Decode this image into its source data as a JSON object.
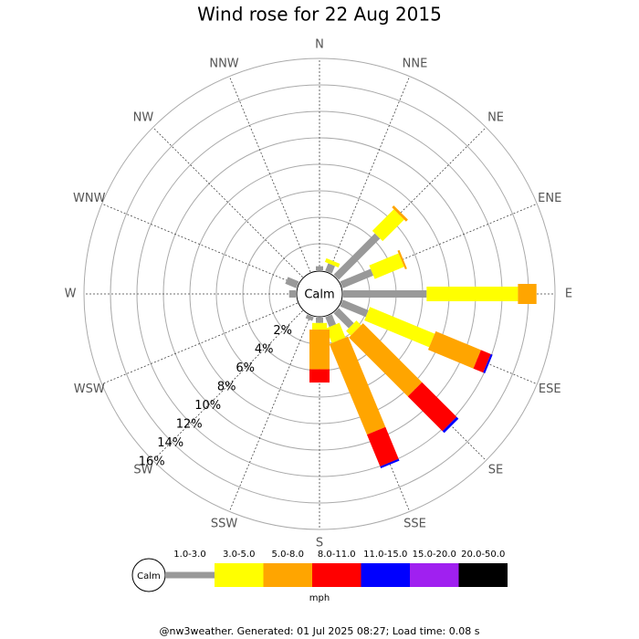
{
  "chart_data": {
    "type": "windrose",
    "title": "Wind rose for 22 Aug 2015",
    "center_label": "Calm",
    "categories": [
      "N",
      "NNE",
      "NE",
      "ENE",
      "E",
      "ESE",
      "SE",
      "SSE",
      "S",
      "SSW",
      "SW",
      "WSW",
      "W",
      "WNW",
      "NW",
      "NNW"
    ],
    "series": [
      {
        "name": "1.0-3.0",
        "color": "#999999",
        "values": [
          0.3,
          0.6,
          4.4,
          2.5,
          6.3,
          2.1,
          1.6,
          0.8,
          0.4,
          0.3,
          0,
          0,
          0.5,
          0.9,
          0,
          0
        ]
      },
      {
        "name": "3.0-5.0",
        "color": "#ffff00",
        "values": [
          0,
          0.3,
          2.3,
          2.4,
          6.9,
          5.3,
          0.5,
          1.2,
          0.5,
          0,
          0,
          0,
          0,
          0,
          0,
          0
        ]
      },
      {
        "name": "5.0-8.0",
        "color": "#ffa500",
        "values": [
          0,
          0,
          0.2,
          0.15,
          1.4,
          3.7,
          6.3,
          7.4,
          3.0,
          0,
          0,
          0,
          0,
          0,
          0,
          0
        ]
      },
      {
        "name": "8.0-11.0",
        "color": "#ff0000",
        "values": [
          0,
          0,
          0,
          0,
          0,
          0.8,
          3.7,
          2.6,
          1.0,
          0,
          0,
          0,
          0,
          0,
          0,
          0
        ]
      },
      {
        "name": "11.0-15.0",
        "color": "#0000ff",
        "values": [
          0,
          0,
          0,
          0,
          0,
          0.15,
          0.2,
          0.15,
          0,
          0,
          0,
          0,
          0,
          0,
          0,
          0
        ]
      },
      {
        "name": "15.0-20.0",
        "color": "#a020f0",
        "values": [
          0,
          0,
          0,
          0,
          0,
          0,
          0,
          0,
          0,
          0,
          0,
          0,
          0,
          0,
          0,
          0
        ]
      },
      {
        "name": "20.0-50.0",
        "color": "#000000",
        "values": [
          0,
          0,
          0,
          0,
          0,
          0,
          0,
          0,
          0,
          0,
          0,
          0,
          0,
          0,
          0,
          0
        ]
      }
    ],
    "rlim": [
      0,
      16
    ],
    "rticks": [
      {
        "value": 2,
        "label": "2%"
      },
      {
        "value": 4,
        "label": "4%"
      },
      {
        "value": 6,
        "label": "6%"
      },
      {
        "value": 8,
        "label": "8%"
      },
      {
        "value": 10,
        "label": "10%"
      },
      {
        "value": 12,
        "label": "12%"
      },
      {
        "value": 14,
        "label": "14%"
      },
      {
        "value": 16,
        "label": "16%"
      }
    ],
    "legend_unit": "mph",
    "footer": "@nw3weather. Generated: 01 Jul 2025 08:27; Load time: 0.08 s"
  }
}
